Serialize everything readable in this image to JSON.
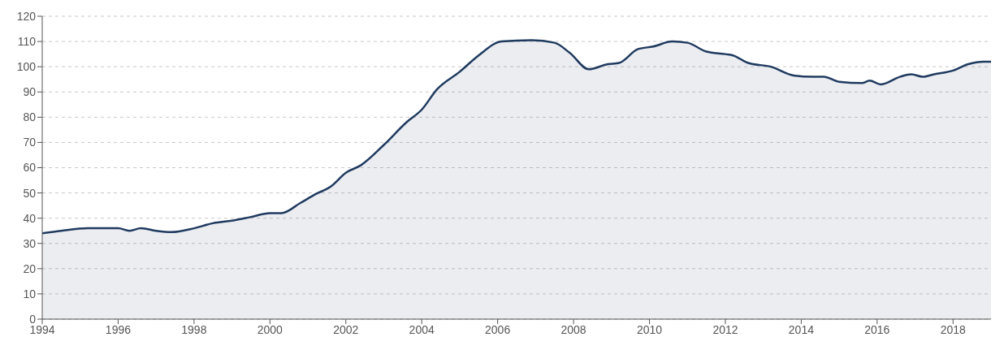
{
  "chart_data": {
    "type": "area",
    "x": [
      1994,
      1994.5,
      1995.2,
      1996,
      1996.3,
      1996.6,
      1997,
      1997.4,
      1998,
      1998.5,
      1999,
      1999.5,
      2000,
      2000.3,
      2000.8,
      2001.2,
      2001.6,
      2002,
      2002.4,
      2003,
      2003.6,
      2004,
      2004.4,
      2005,
      2005.5,
      2006.1,
      2006.9,
      2007.5,
      2007.9,
      2008.4,
      2008.9,
      2009.2,
      2009.7,
      2010.1,
      2010.6,
      2011,
      2011.5,
      2012,
      2012.2,
      2012.6,
      2013.2,
      2013.8,
      2014.3,
      2014.6,
      2015,
      2015.6,
      2015.8,
      2016.1,
      2016.6,
      2016.9,
      2017.2,
      2017.5,
      2018,
      2018.4,
      2018.8,
      2019
    ],
    "series": [
      {
        "color": "#1f3a5f",
        "values": [
          34,
          35,
          36,
          36,
          35,
          36,
          35,
          34.5,
          36,
          38,
          39,
          40.5,
          42,
          42,
          46,
          49.5,
          52.5,
          58,
          61,
          69,
          78,
          83,
          91,
          98,
          104.5,
          110,
          110.5,
          109.5,
          105.5,
          99,
          101,
          101.5,
          107,
          108,
          110,
          109.5,
          106,
          105,
          104.5,
          101.5,
          100,
          96.5,
          96,
          96,
          94,
          93.5,
          94.5,
          93,
          96,
          97,
          96,
          97,
          98.5,
          101,
          102,
          102
        ]
      }
    ],
    "xlim": [
      1994,
      2019
    ],
    "xticks": [
      1994,
      1996,
      1998,
      2000,
      2002,
      2004,
      2006,
      2008,
      2010,
      2012,
      2014,
      2016,
      2018
    ],
    "ylim": [
      0,
      120
    ],
    "yticks": [
      0,
      10,
      20,
      30,
      40,
      50,
      60,
      70,
      80,
      90,
      100,
      110,
      120
    ],
    "grid": "y",
    "line_style": "solid"
  }
}
